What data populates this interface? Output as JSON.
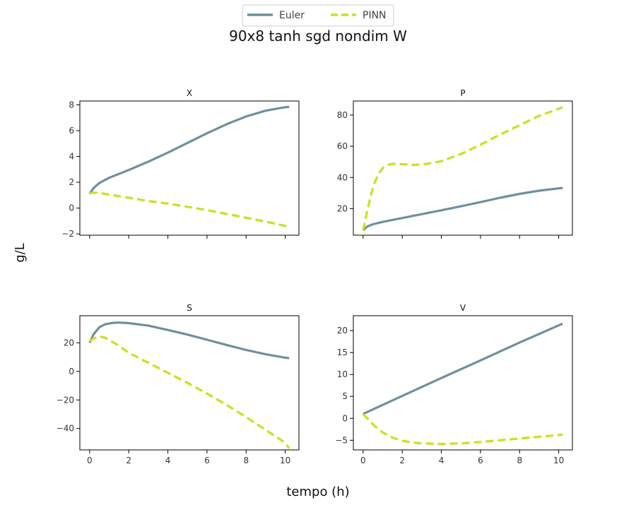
{
  "figure": {
    "title": "90x8 tanh sgd nondim W",
    "xlabel": "tempo (h)",
    "ylabel": "g/L"
  },
  "legend": {
    "placement": "top-center",
    "entries": [
      {
        "label": "Euler",
        "color": "#6f8f9c",
        "style": "solid"
      },
      {
        "label": "PINN",
        "color": "#c8e21d",
        "style": "dashed"
      }
    ]
  },
  "chart_data": [
    {
      "type": "line",
      "title": "X",
      "xlim": [
        -0.5,
        10.7
      ],
      "ylim": [
        -2.1,
        8.3
      ],
      "xticks": [
        0,
        2,
        4,
        6,
        8,
        10
      ],
      "yticks": [
        -2,
        0,
        2,
        4,
        6,
        8
      ],
      "show_xticklabels": false,
      "series": [
        {
          "name": "Euler",
          "color": "#6f8f9c",
          "style": "solid",
          "x": [
            0,
            0.2,
            0.5,
            1,
            2,
            3,
            4,
            5,
            6,
            7,
            8,
            9,
            10,
            10.2
          ],
          "y": [
            1.1,
            1.55,
            1.95,
            2.35,
            2.95,
            3.6,
            4.3,
            5.05,
            5.8,
            6.5,
            7.1,
            7.55,
            7.82,
            7.85
          ]
        },
        {
          "name": "PINN",
          "color": "#c8e21d",
          "style": "dashed",
          "x": [
            0,
            0.2,
            0.5,
            1,
            2,
            3,
            4,
            5,
            6,
            7,
            8,
            9,
            10,
            10.2
          ],
          "y": [
            1.15,
            1.2,
            1.18,
            1.05,
            0.8,
            0.55,
            0.35,
            0.1,
            -0.15,
            -0.45,
            -0.75,
            -1.05,
            -1.38,
            -1.55
          ]
        }
      ]
    },
    {
      "type": "line",
      "title": "P",
      "xlim": [
        -0.5,
        10.7
      ],
      "ylim": [
        3,
        89
      ],
      "xticks": [
        0,
        2,
        4,
        6,
        8,
        10
      ],
      "yticks": [
        20,
        40,
        60,
        80
      ],
      "show_xticklabels": false,
      "series": [
        {
          "name": "Euler",
          "color": "#6f8f9c",
          "style": "solid",
          "x": [
            0,
            0.2,
            0.5,
            1,
            2,
            3,
            4,
            5,
            6,
            7,
            8,
            9,
            10,
            10.2
          ],
          "y": [
            6,
            8.5,
            10,
            11.5,
            14,
            16.5,
            19,
            21.5,
            24.2,
            27,
            29.5,
            31.5,
            33,
            33.3
          ]
        },
        {
          "name": "PINN",
          "color": "#c8e21d",
          "style": "dashed",
          "x": [
            0,
            0.2,
            0.4,
            0.6,
            0.8,
            1,
            1.2,
            1.5,
            2,
            2.5,
            3,
            3.5,
            4,
            5,
            6,
            7,
            8,
            9,
            10,
            10.2
          ],
          "y": [
            6,
            18,
            29,
            37,
            42.5,
            46,
            47.8,
            48.7,
            48.5,
            48,
            48.3,
            49.2,
            50.5,
            55,
            61,
            67.5,
            73.5,
            79.5,
            84,
            85
          ]
        }
      ]
    },
    {
      "type": "line",
      "title": "S",
      "xlim": [
        -0.5,
        10.7
      ],
      "ylim": [
        -55,
        39
      ],
      "xticks": [
        0,
        2,
        4,
        6,
        8,
        10
      ],
      "yticks": [
        -40,
        -20,
        0,
        20
      ],
      "xticklabels": [
        "0",
        "2",
        "4",
        "6",
        "8",
        "10"
      ],
      "show_xticklabels": true,
      "series": [
        {
          "name": "Euler",
          "color": "#6f8f9c",
          "style": "solid",
          "x": [
            0,
            0.2,
            0.5,
            0.8,
            1.2,
            1.5,
            2,
            3,
            4,
            5,
            6,
            7,
            8,
            9,
            10,
            10.2
          ],
          "y": [
            20,
            26,
            31,
            33,
            34,
            34.2,
            33.8,
            32,
            29,
            25.8,
            22.2,
            18.5,
            15,
            12,
            9.6,
            9.2
          ]
        },
        {
          "name": "PINN",
          "color": "#c8e21d",
          "style": "dashed",
          "x": [
            0,
            0.2,
            0.5,
            0.8,
            1,
            1.5,
            2,
            3,
            4,
            5,
            6,
            7,
            8,
            9,
            10,
            10.2
          ],
          "y": [
            21,
            23,
            24.5,
            23.5,
            22,
            18,
            13,
            6,
            -1,
            -8,
            -15.5,
            -23.5,
            -32,
            -41,
            -50,
            -54
          ]
        }
      ]
    },
    {
      "type": "line",
      "title": "V",
      "xlim": [
        -0.5,
        10.7
      ],
      "ylim": [
        -7.2,
        23.4
      ],
      "xticks": [
        0,
        2,
        4,
        6,
        8,
        10
      ],
      "yticks": [
        -5,
        0,
        5,
        10,
        15,
        20
      ],
      "xticklabels": [
        "0",
        "2",
        "4",
        "6",
        "8",
        "10"
      ],
      "show_xticklabels": true,
      "series": [
        {
          "name": "Euler",
          "color": "#6f8f9c",
          "style": "solid",
          "x": [
            0,
            2,
            4,
            6,
            8,
            10,
            10.2
          ],
          "y": [
            1,
            5.1,
            9.2,
            13.2,
            17.3,
            21.2,
            21.6
          ]
        },
        {
          "name": "PINN",
          "color": "#c8e21d",
          "style": "dashed",
          "x": [
            0,
            0.3,
            0.6,
            1,
            1.5,
            2,
            2.5,
            3,
            4,
            5,
            6,
            7,
            8,
            9,
            10,
            10.2
          ],
          "y": [
            1,
            -0.4,
            -1.8,
            -3.2,
            -4.4,
            -5.1,
            -5.5,
            -5.7,
            -5.85,
            -5.7,
            -5.4,
            -5.0,
            -4.6,
            -4.2,
            -3.8,
            -3.7
          ]
        }
      ]
    }
  ]
}
